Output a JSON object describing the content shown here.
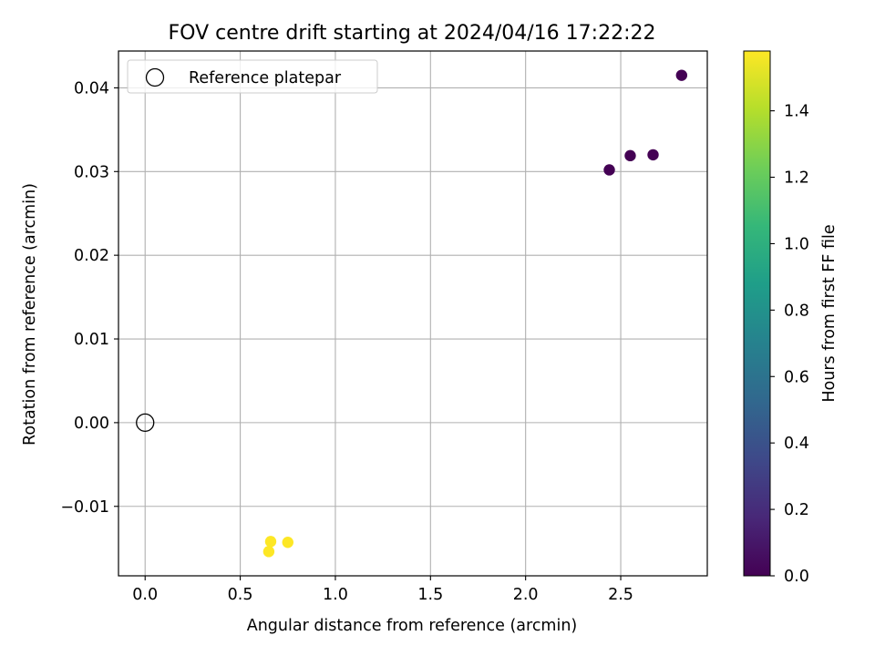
{
  "chart_data": {
    "type": "scatter",
    "title": "FOV centre drift starting at 2024/04/16 17:22:22",
    "xlabel": "Angular distance from reference (arcmin)",
    "ylabel": "Rotation from reference (arcmin)",
    "xlim": [
      -0.14,
      2.955
    ],
    "ylim": [
      -0.0183,
      0.0444
    ],
    "x_ticks": [
      0.0,
      0.5,
      1.0,
      1.5,
      2.0,
      2.5
    ],
    "x_tick_labels": [
      "0.0",
      "0.5",
      "1.0",
      "1.5",
      "2.0",
      "2.5"
    ],
    "y_ticks": [
      -0.01,
      0.0,
      0.01,
      0.02,
      0.03,
      0.04
    ],
    "y_tick_labels": [
      "−0.01",
      "0.00",
      "0.01",
      "0.02",
      "0.03",
      "0.04"
    ],
    "grid": true,
    "legend": {
      "position": "top-left",
      "entries": [
        {
          "label": "Reference platepar",
          "marker": "open-circle"
        }
      ]
    },
    "reference_point": {
      "x": 0.0,
      "y": 0.0
    },
    "series": [
      {
        "name": "FOV centre drift",
        "points": [
          {
            "x": 2.44,
            "y": 0.0302,
            "hours": 0.0
          },
          {
            "x": 2.55,
            "y": 0.0319,
            "hours": 0.0
          },
          {
            "x": 2.67,
            "y": 0.032,
            "hours": 0.0
          },
          {
            "x": 2.82,
            "y": 0.0415,
            "hours": 0.0
          },
          {
            "x": 0.65,
            "y": -0.0154,
            "hours": 1.58
          },
          {
            "x": 0.66,
            "y": -0.0142,
            "hours": 1.58
          },
          {
            "x": 0.75,
            "y": -0.0143,
            "hours": 1.58
          }
        ]
      }
    ],
    "colorbar": {
      "label": "Hours from first FF file",
      "colormap": "viridis",
      "range": [
        0.0,
        1.58
      ],
      "ticks": [
        0.0,
        0.2,
        0.4,
        0.6,
        0.8,
        1.0,
        1.2,
        1.4
      ],
      "tick_labels": [
        "0.0",
        "0.2",
        "0.4",
        "0.6",
        "0.8",
        "1.0",
        "1.2",
        "1.4"
      ],
      "stops": [
        "#440154",
        "#482878",
        "#3e4989",
        "#31688e",
        "#26828e",
        "#1f9e89",
        "#35b779",
        "#6ece58",
        "#b5de2b",
        "#fde725"
      ]
    }
  }
}
